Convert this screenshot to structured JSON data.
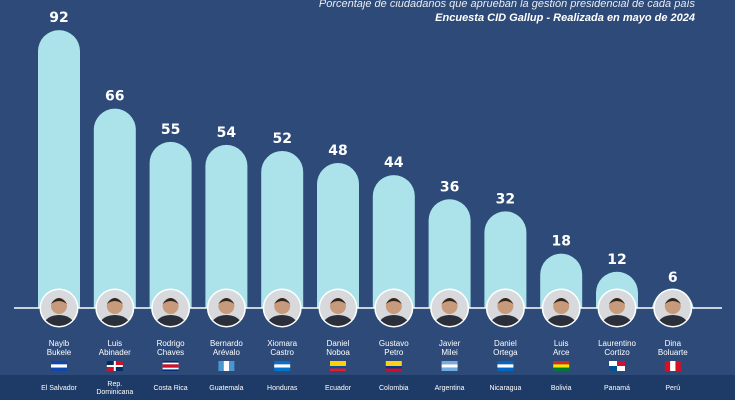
{
  "header": {
    "line1": "Porcentaje de ciudadanos que aprueban la gestión presidencial de cada país",
    "line2": "Encuesta CID Gallup - Realizada en mayo de 2024"
  },
  "colors": {
    "background": "#2d4a78",
    "bar": "#ace3ea",
    "baseline": "#ffffff",
    "text": "#ffffff",
    "flag_strip": "#1e3a66"
  },
  "chart_data": {
    "type": "bar",
    "ylim": [
      0,
      100
    ],
    "grid": false,
    "legend": "none",
    "categories": [
      {
        "name": [
          "Nayib",
          "Bukele"
        ],
        "country": [
          "El Salvador"
        ],
        "flag": "el-salvador-flag"
      },
      {
        "name": [
          "Luis",
          "Abinader"
        ],
        "country": [
          "Rep.",
          "Dominicana"
        ],
        "flag": "dominican-republic-flag"
      },
      {
        "name": [
          "Rodrigo",
          "Chaves"
        ],
        "country": [
          "Costa Rica"
        ],
        "flag": "costa-rica-flag"
      },
      {
        "name": [
          "Bernardo",
          "Arévalo"
        ],
        "country": [
          "Guatemala"
        ],
        "flag": "guatemala-flag"
      },
      {
        "name": [
          "Xiomara",
          "Castro"
        ],
        "country": [
          "Honduras"
        ],
        "flag": "honduras-flag"
      },
      {
        "name": [
          "Daniel",
          "Noboa"
        ],
        "country": [
          "Ecuador"
        ],
        "flag": "ecuador-flag"
      },
      {
        "name": [
          "Gustavo",
          "Petro"
        ],
        "country": [
          "Colombia"
        ],
        "flag": "colombia-flag"
      },
      {
        "name": [
          "Javier",
          "Milei"
        ],
        "country": [
          "Argentina"
        ],
        "flag": "argentina-flag"
      },
      {
        "name": [
          "Daniel",
          "Ortega"
        ],
        "country": [
          "Nicaragua"
        ],
        "flag": "nicaragua-flag"
      },
      {
        "name": [
          "Luis",
          "Arce"
        ],
        "country": [
          "Bolivia"
        ],
        "flag": "bolivia-flag"
      },
      {
        "name": [
          "Laurentino",
          "Cortizo"
        ],
        "country": [
          "Panamá"
        ],
        "flag": "panama-flag"
      },
      {
        "name": [
          "Dina",
          "Boluarte"
        ],
        "country": [
          "Perú"
        ],
        "flag": "peru-flag"
      }
    ],
    "values": [
      92,
      66,
      55,
      54,
      52,
      48,
      44,
      36,
      32,
      18,
      12,
      6
    ]
  }
}
